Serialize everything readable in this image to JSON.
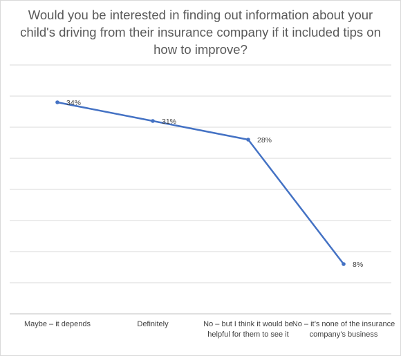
{
  "chart_data": {
    "type": "line",
    "title": "Would you be interested in finding out information about your child's driving from their insurance company if it included tips on how to improve?",
    "xlabel": "",
    "ylabel": "",
    "categories": [
      "Maybe – it depends",
      "Definitely",
      "No – but I think it would be helpful for them to see it",
      "No – it’s none of the insurance company’s business"
    ],
    "series": [
      {
        "values": [
          34,
          31,
          28,
          8
        ],
        "labels": [
          "34%",
          "31%",
          "28%",
          "8%"
        ],
        "color": "#4472c4"
      }
    ],
    "ylim": [
      0,
      40
    ],
    "grid": true,
    "legend": "none"
  }
}
